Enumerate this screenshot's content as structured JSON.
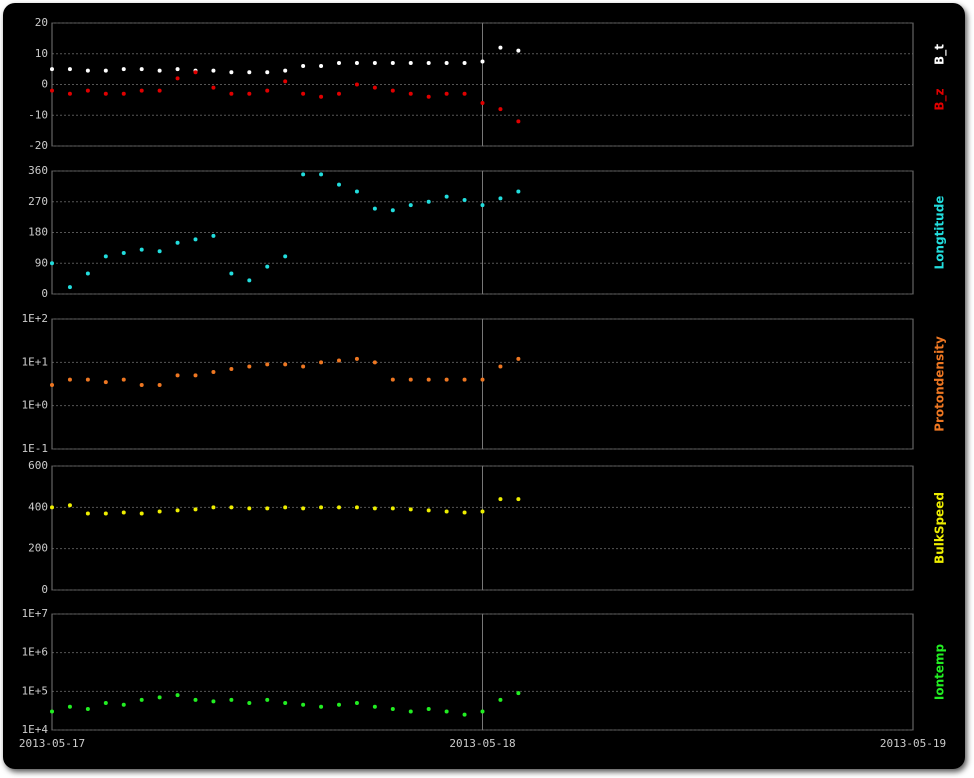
{
  "chart_data": [
    {
      "type": "scatter",
      "xlim": [
        "2013-05-17",
        "2013-05-19"
      ],
      "xticks": [
        "2013-05-17",
        "2013-05-18",
        "2013-05-19"
      ],
      "x": [
        "2013-05-17 00:00",
        "2013-05-17 01:00",
        "2013-05-17 02:00",
        "2013-05-17 03:00",
        "2013-05-17 04:00",
        "2013-05-17 05:00",
        "2013-05-17 06:00",
        "2013-05-17 07:00",
        "2013-05-17 08:00",
        "2013-05-17 09:00",
        "2013-05-17 10:00",
        "2013-05-17 11:00",
        "2013-05-17 12:00",
        "2013-05-17 13:00",
        "2013-05-17 14:00",
        "2013-05-17 15:00",
        "2013-05-17 16:00",
        "2013-05-17 17:00",
        "2013-05-17 18:00",
        "2013-05-17 19:00",
        "2013-05-17 20:00",
        "2013-05-17 21:00",
        "2013-05-17 22:00",
        "2013-05-17 23:00",
        "2013-05-18 00:00",
        "2013-05-18 01:00",
        "2013-05-18 02:00"
      ],
      "ylim": [
        -20,
        20
      ],
      "yticks": [
        -20,
        -10,
        0,
        10,
        20
      ],
      "log": false,
      "series": [
        {
          "name": "B_t",
          "color": "#ffffff",
          "values": [
            5,
            5,
            4.5,
            4.5,
            5,
            5,
            4.5,
            5,
            4.5,
            4.5,
            4,
            4,
            4,
            4.5,
            6,
            6,
            7,
            7,
            7,
            7,
            7,
            7,
            7,
            7,
            7.5,
            12,
            11
          ]
        },
        {
          "name": "B_z",
          "color": "#e00000",
          "values": [
            -2,
            -3,
            -2,
            -3,
            -3,
            -2,
            -2,
            2,
            4,
            -1,
            -3,
            -3,
            -2,
            1,
            -3,
            -4,
            -3,
            0,
            -1,
            -2,
            -3,
            -4,
            -3,
            -3,
            -6,
            -8,
            -12
          ]
        }
      ]
    },
    {
      "type": "scatter",
      "xlim": [
        "2013-05-17",
        "2013-05-19"
      ],
      "xticks": [
        "2013-05-17",
        "2013-05-18",
        "2013-05-19"
      ],
      "x": [
        "2013-05-17 00:00",
        "2013-05-17 01:00",
        "2013-05-17 02:00",
        "2013-05-17 03:00",
        "2013-05-17 04:00",
        "2013-05-17 05:00",
        "2013-05-17 06:00",
        "2013-05-17 07:00",
        "2013-05-17 08:00",
        "2013-05-17 09:00",
        "2013-05-17 10:00",
        "2013-05-17 11:00",
        "2013-05-17 12:00",
        "2013-05-17 13:00",
        "2013-05-17 14:00",
        "2013-05-17 15:00",
        "2013-05-17 16:00",
        "2013-05-17 17:00",
        "2013-05-17 18:00",
        "2013-05-17 19:00",
        "2013-05-17 20:00",
        "2013-05-17 21:00",
        "2013-05-17 22:00",
        "2013-05-17 23:00",
        "2013-05-18 00:00",
        "2013-05-18 01:00",
        "2013-05-18 02:00"
      ],
      "ylim": [
        0,
        360
      ],
      "yticks": [
        0,
        90,
        180,
        270,
        360
      ],
      "log": false,
      "series": [
        {
          "name": "Longtitude",
          "color": "#22dddd",
          "values": [
            90,
            20,
            60,
            110,
            120,
            130,
            125,
            150,
            160,
            170,
            60,
            40,
            80,
            110,
            350,
            350,
            320,
            300,
            250,
            245,
            260,
            270,
            285,
            275,
            260,
            280,
            300
          ]
        }
      ]
    },
    {
      "type": "scatter",
      "xlim": [
        "2013-05-17",
        "2013-05-19"
      ],
      "xticks": [
        "2013-05-17",
        "2013-05-18",
        "2013-05-19"
      ],
      "x": [
        "2013-05-17 00:00",
        "2013-05-17 01:00",
        "2013-05-17 02:00",
        "2013-05-17 03:00",
        "2013-05-17 04:00",
        "2013-05-17 05:00",
        "2013-05-17 06:00",
        "2013-05-17 07:00",
        "2013-05-17 08:00",
        "2013-05-17 09:00",
        "2013-05-17 10:00",
        "2013-05-17 11:00",
        "2013-05-17 12:00",
        "2013-05-17 13:00",
        "2013-05-17 14:00",
        "2013-05-17 15:00",
        "2013-05-17 16:00",
        "2013-05-17 17:00",
        "2013-05-17 18:00",
        "2013-05-17 19:00",
        "2013-05-17 20:00",
        "2013-05-17 21:00",
        "2013-05-17 22:00",
        "2013-05-17 23:00",
        "2013-05-18 00:00",
        "2013-05-18 01:00",
        "2013-05-18 02:00"
      ],
      "ylim": [
        0.1,
        100
      ],
      "yticks": [
        {
          "value": 0.1,
          "label": "1E-1"
        },
        {
          "value": 1,
          "label": "1E+0"
        },
        {
          "value": 10,
          "label": "1E+1"
        },
        {
          "value": 100,
          "label": "1E+2"
        }
      ],
      "log": true,
      "series": [
        {
          "name": "Protondensity",
          "color": "#ee7722",
          "values": [
            3,
            4,
            4,
            3.5,
            4,
            3,
            3,
            5,
            5,
            6,
            7,
            8,
            9,
            9,
            8,
            10,
            11,
            12,
            10,
            4,
            4,
            4,
            4,
            4,
            4,
            8,
            12
          ]
        }
      ]
    },
    {
      "type": "scatter",
      "xlim": [
        "2013-05-17",
        "2013-05-19"
      ],
      "xticks": [
        "2013-05-17",
        "2013-05-18",
        "2013-05-19"
      ],
      "x": [
        "2013-05-17 00:00",
        "2013-05-17 01:00",
        "2013-05-17 02:00",
        "2013-05-17 03:00",
        "2013-05-17 04:00",
        "2013-05-17 05:00",
        "2013-05-17 06:00",
        "2013-05-17 07:00",
        "2013-05-17 08:00",
        "2013-05-17 09:00",
        "2013-05-17 10:00",
        "2013-05-17 11:00",
        "2013-05-17 12:00",
        "2013-05-17 13:00",
        "2013-05-17 14:00",
        "2013-05-17 15:00",
        "2013-05-17 16:00",
        "2013-05-17 17:00",
        "2013-05-17 18:00",
        "2013-05-17 19:00",
        "2013-05-17 20:00",
        "2013-05-17 21:00",
        "2013-05-17 22:00",
        "2013-05-17 23:00",
        "2013-05-18 00:00",
        "2013-05-18 01:00",
        "2013-05-18 02:00"
      ],
      "ylim": [
        0,
        600
      ],
      "yticks": [
        0,
        200,
        400,
        600
      ],
      "log": false,
      "series": [
        {
          "name": "BulkSpeed",
          "color": "#eeee00",
          "values": [
            400,
            410,
            370,
            370,
            375,
            370,
            380,
            385,
            390,
            400,
            400,
            395,
            395,
            400,
            395,
            400,
            400,
            400,
            395,
            395,
            390,
            385,
            380,
            375,
            380,
            440,
            440
          ]
        }
      ]
    },
    {
      "type": "scatter",
      "xlim": [
        "2013-05-17",
        "2013-05-19"
      ],
      "xticks": [
        "2013-05-17",
        "2013-05-18",
        "2013-05-19"
      ],
      "show_xlabels": true,
      "x": [
        "2013-05-17 00:00",
        "2013-05-17 01:00",
        "2013-05-17 02:00",
        "2013-05-17 03:00",
        "2013-05-17 04:00",
        "2013-05-17 05:00",
        "2013-05-17 06:00",
        "2013-05-17 07:00",
        "2013-05-17 08:00",
        "2013-05-17 09:00",
        "2013-05-17 10:00",
        "2013-05-17 11:00",
        "2013-05-17 12:00",
        "2013-05-17 13:00",
        "2013-05-17 14:00",
        "2013-05-17 15:00",
        "2013-05-17 16:00",
        "2013-05-17 17:00",
        "2013-05-17 18:00",
        "2013-05-17 19:00",
        "2013-05-17 20:00",
        "2013-05-17 21:00",
        "2013-05-17 22:00",
        "2013-05-17 23:00",
        "2013-05-18 00:00",
        "2013-05-18 01:00",
        "2013-05-18 02:00"
      ],
      "ylim": [
        10000,
        10000000
      ],
      "yticks": [
        {
          "value": 10000,
          "label": "1E+4"
        },
        {
          "value": 100000,
          "label": "1E+5"
        },
        {
          "value": 1000000,
          "label": "1E+6"
        },
        {
          "value": 10000000,
          "label": "1E+7"
        }
      ],
      "log": true,
      "series": [
        {
          "name": "Iontemp",
          "color": "#22ee22",
          "values": [
            30000,
            40000,
            35000,
            50000,
            45000,
            60000,
            70000,
            80000,
            60000,
            55000,
            60000,
            50000,
            60000,
            50000,
            45000,
            40000,
            45000,
            50000,
            40000,
            35000,
            30000,
            35000,
            30000,
            25000,
            30000,
            60000,
            90000
          ]
        }
      ]
    }
  ]
}
